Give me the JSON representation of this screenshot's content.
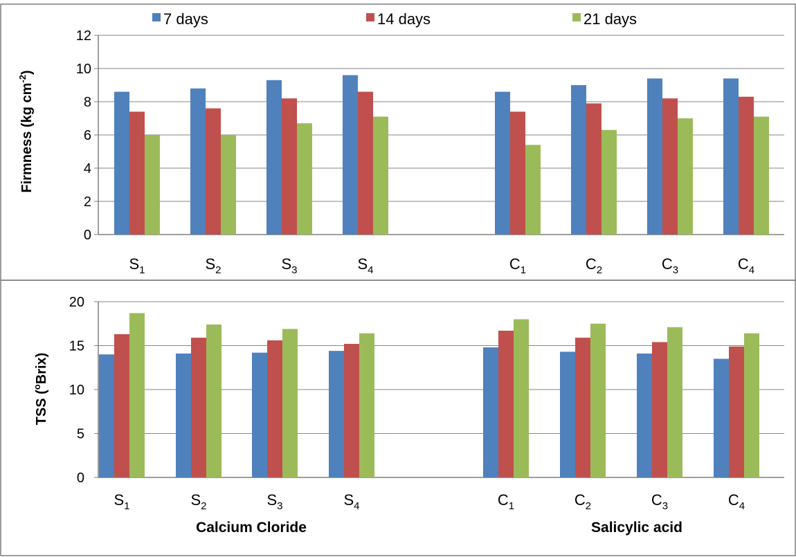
{
  "colors": {
    "7 days": "#4f81bd",
    "14 days": "#c0504d",
    "21 days": "#9bbb59"
  },
  "legend": [
    "7 days",
    "14 days",
    "21 days"
  ],
  "group_titles": [
    "Calcium Cloride",
    "Salicylic acid"
  ],
  "chart_data": [
    {
      "type": "bar",
      "ylabel": "Firmness (kg cm",
      "ylabel_sup": "-2",
      "ylabel_tail": ")",
      "ylim": [
        0,
        12
      ],
      "yticks": [
        0,
        2,
        4,
        6,
        8,
        10,
        12
      ],
      "grid": true,
      "categories": [
        {
          "base": "S",
          "sub": "1"
        },
        {
          "base": "S",
          "sub": "2"
        },
        {
          "base": "S",
          "sub": "3"
        },
        {
          "base": "S",
          "sub": "4"
        },
        {
          "base": "C",
          "sub": "1"
        },
        {
          "base": "C",
          "sub": "2"
        },
        {
          "base": "C",
          "sub": "3"
        },
        {
          "base": "C",
          "sub": "4"
        }
      ],
      "series": [
        {
          "name": "7 days",
          "values": [
            8.6,
            8.8,
            9.3,
            9.6,
            8.6,
            9.0,
            9.4,
            9.4
          ]
        },
        {
          "name": "14 days",
          "values": [
            7.4,
            7.6,
            8.2,
            8.6,
            7.4,
            7.9,
            8.2,
            8.3
          ]
        },
        {
          "name": "21 days",
          "values": [
            6.0,
            6.0,
            6.7,
            7.1,
            5.4,
            6.3,
            7.0,
            7.1
          ]
        }
      ]
    },
    {
      "type": "bar",
      "ylabel": "TSS (",
      "ylabel_sup": "o",
      "ylabel_tail": "Brix)",
      "ylim": [
        0,
        20
      ],
      "yticks": [
        0,
        5,
        10,
        15,
        20
      ],
      "grid": true,
      "categories": [
        {
          "base": "S",
          "sub": "1"
        },
        {
          "base": "S",
          "sub": "2"
        },
        {
          "base": "S",
          "sub": "3"
        },
        {
          "base": "S",
          "sub": "4"
        },
        {
          "base": "C",
          "sub": "1"
        },
        {
          "base": "C",
          "sub": "2"
        },
        {
          "base": "C",
          "sub": "3"
        },
        {
          "base": "C",
          "sub": "4"
        }
      ],
      "series": [
        {
          "name": "7 days",
          "values": [
            14.0,
            14.1,
            14.2,
            14.4,
            14.8,
            14.3,
            14.1,
            13.5
          ]
        },
        {
          "name": "14 days",
          "values": [
            16.3,
            15.9,
            15.6,
            15.2,
            16.7,
            15.9,
            15.4,
            14.9
          ]
        },
        {
          "name": "21 days",
          "values": [
            18.7,
            17.4,
            16.9,
            16.4,
            18.0,
            17.5,
            17.1,
            16.4
          ]
        }
      ]
    }
  ]
}
